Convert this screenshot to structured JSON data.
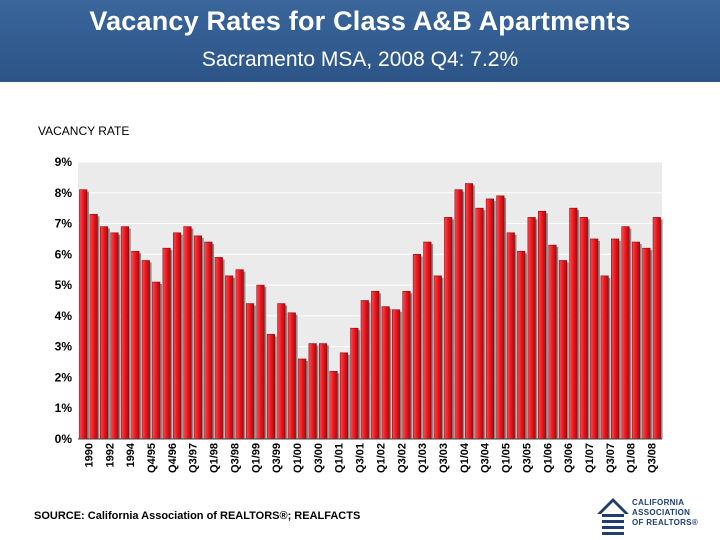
{
  "header": {
    "title": "Vacancy Rates for Class A&B Apartments",
    "subtitle": "Sacramento MSA,  2008 Q4: 7.2%"
  },
  "footer": {
    "source": "SOURCE: California Association of REALTORS®; REALFACTS",
    "logo_line1": "CALIFORNIA",
    "logo_line2": "ASSOCIATION",
    "logo_line3": "OF REALTORS®"
  },
  "colors": {
    "header_bg": "#2f5a8f",
    "bar": "#e8141b",
    "bar_dark": "#8c0a0e",
    "plot_bg": "#ebebeb"
  },
  "chart_data": {
    "type": "bar",
    "title": "",
    "ylabel": "VACANCY RATE",
    "xlabel": "",
    "ylim": [
      0,
      9
    ],
    "yticks": [
      "0%",
      "1%",
      "2%",
      "3%",
      "4%",
      "5%",
      "6%",
      "7%",
      "8%",
      "9%"
    ],
    "grid": true,
    "tick_labels": [
      "1990",
      "1992",
      "1994",
      "Q4/95",
      "Q4/96",
      "Q3/97",
      "Q1/98",
      "Q3/98",
      "Q1/99",
      "Q3/99",
      "Q1/00",
      "Q3/00",
      "Q1/01",
      "Q3/01",
      "Q1/02",
      "Q3/02",
      "Q1/03",
      "Q3/03",
      "Q1/04",
      "Q3/04",
      "Q1/05",
      "Q3/05",
      "Q1/06",
      "Q3/06",
      "Q1/07",
      "Q3/07",
      "Q1/08",
      "Q3/08"
    ],
    "values": [
      8.1,
      7.3,
      6.9,
      6.7,
      6.9,
      6.1,
      5.8,
      5.1,
      6.2,
      6.7,
      6.9,
      6.6,
      6.4,
      5.9,
      5.3,
      5.5,
      4.4,
      5.0,
      3.4,
      4.4,
      4.1,
      2.6,
      3.1,
      3.1,
      2.2,
      2.8,
      3.6,
      4.5,
      4.8,
      4.3,
      4.2,
      4.8,
      6.0,
      6.4,
      5.3,
      7.2,
      8.1,
      8.3,
      7.5,
      7.8,
      7.9,
      6.7,
      6.1,
      7.2,
      7.4,
      6.3,
      5.8,
      7.5,
      7.2,
      6.5,
      5.3,
      6.5,
      6.9,
      6.4,
      6.2,
      7.2
    ]
  }
}
